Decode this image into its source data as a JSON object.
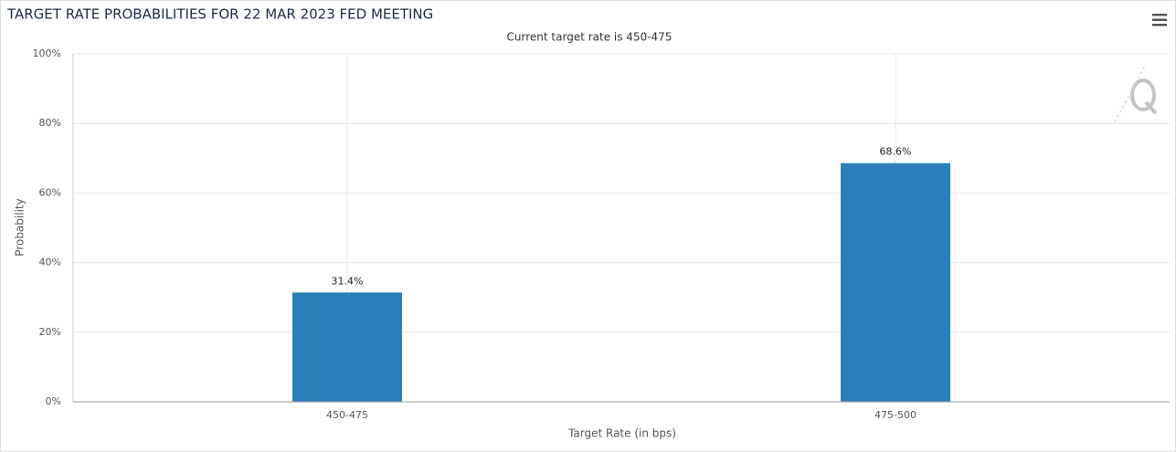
{
  "chart_data": {
    "type": "bar",
    "title": "TARGET RATE PROBABILITIES FOR 22 MAR 2023 FED MEETING",
    "subtitle": "Current target rate is 450-475",
    "x_label": "Target Rate (in bps)",
    "y_label": "Probability",
    "categories": [
      "450-475",
      "475-500"
    ],
    "values": [
      31.4,
      68.6
    ],
    "value_labels": [
      "31.4%",
      "68.6%"
    ],
    "color": "#2a7fb8",
    "ylim": [
      0,
      100
    ],
    "yticks": [
      {
        "value": 0,
        "label": "0%"
      },
      {
        "value": 20,
        "label": "20%"
      },
      {
        "value": 40,
        "label": "40%"
      },
      {
        "value": 60,
        "label": "60%"
      },
      {
        "value": 80,
        "label": "80%"
      },
      {
        "value": 100,
        "label": "100%"
      }
    ],
    "grid": true
  }
}
